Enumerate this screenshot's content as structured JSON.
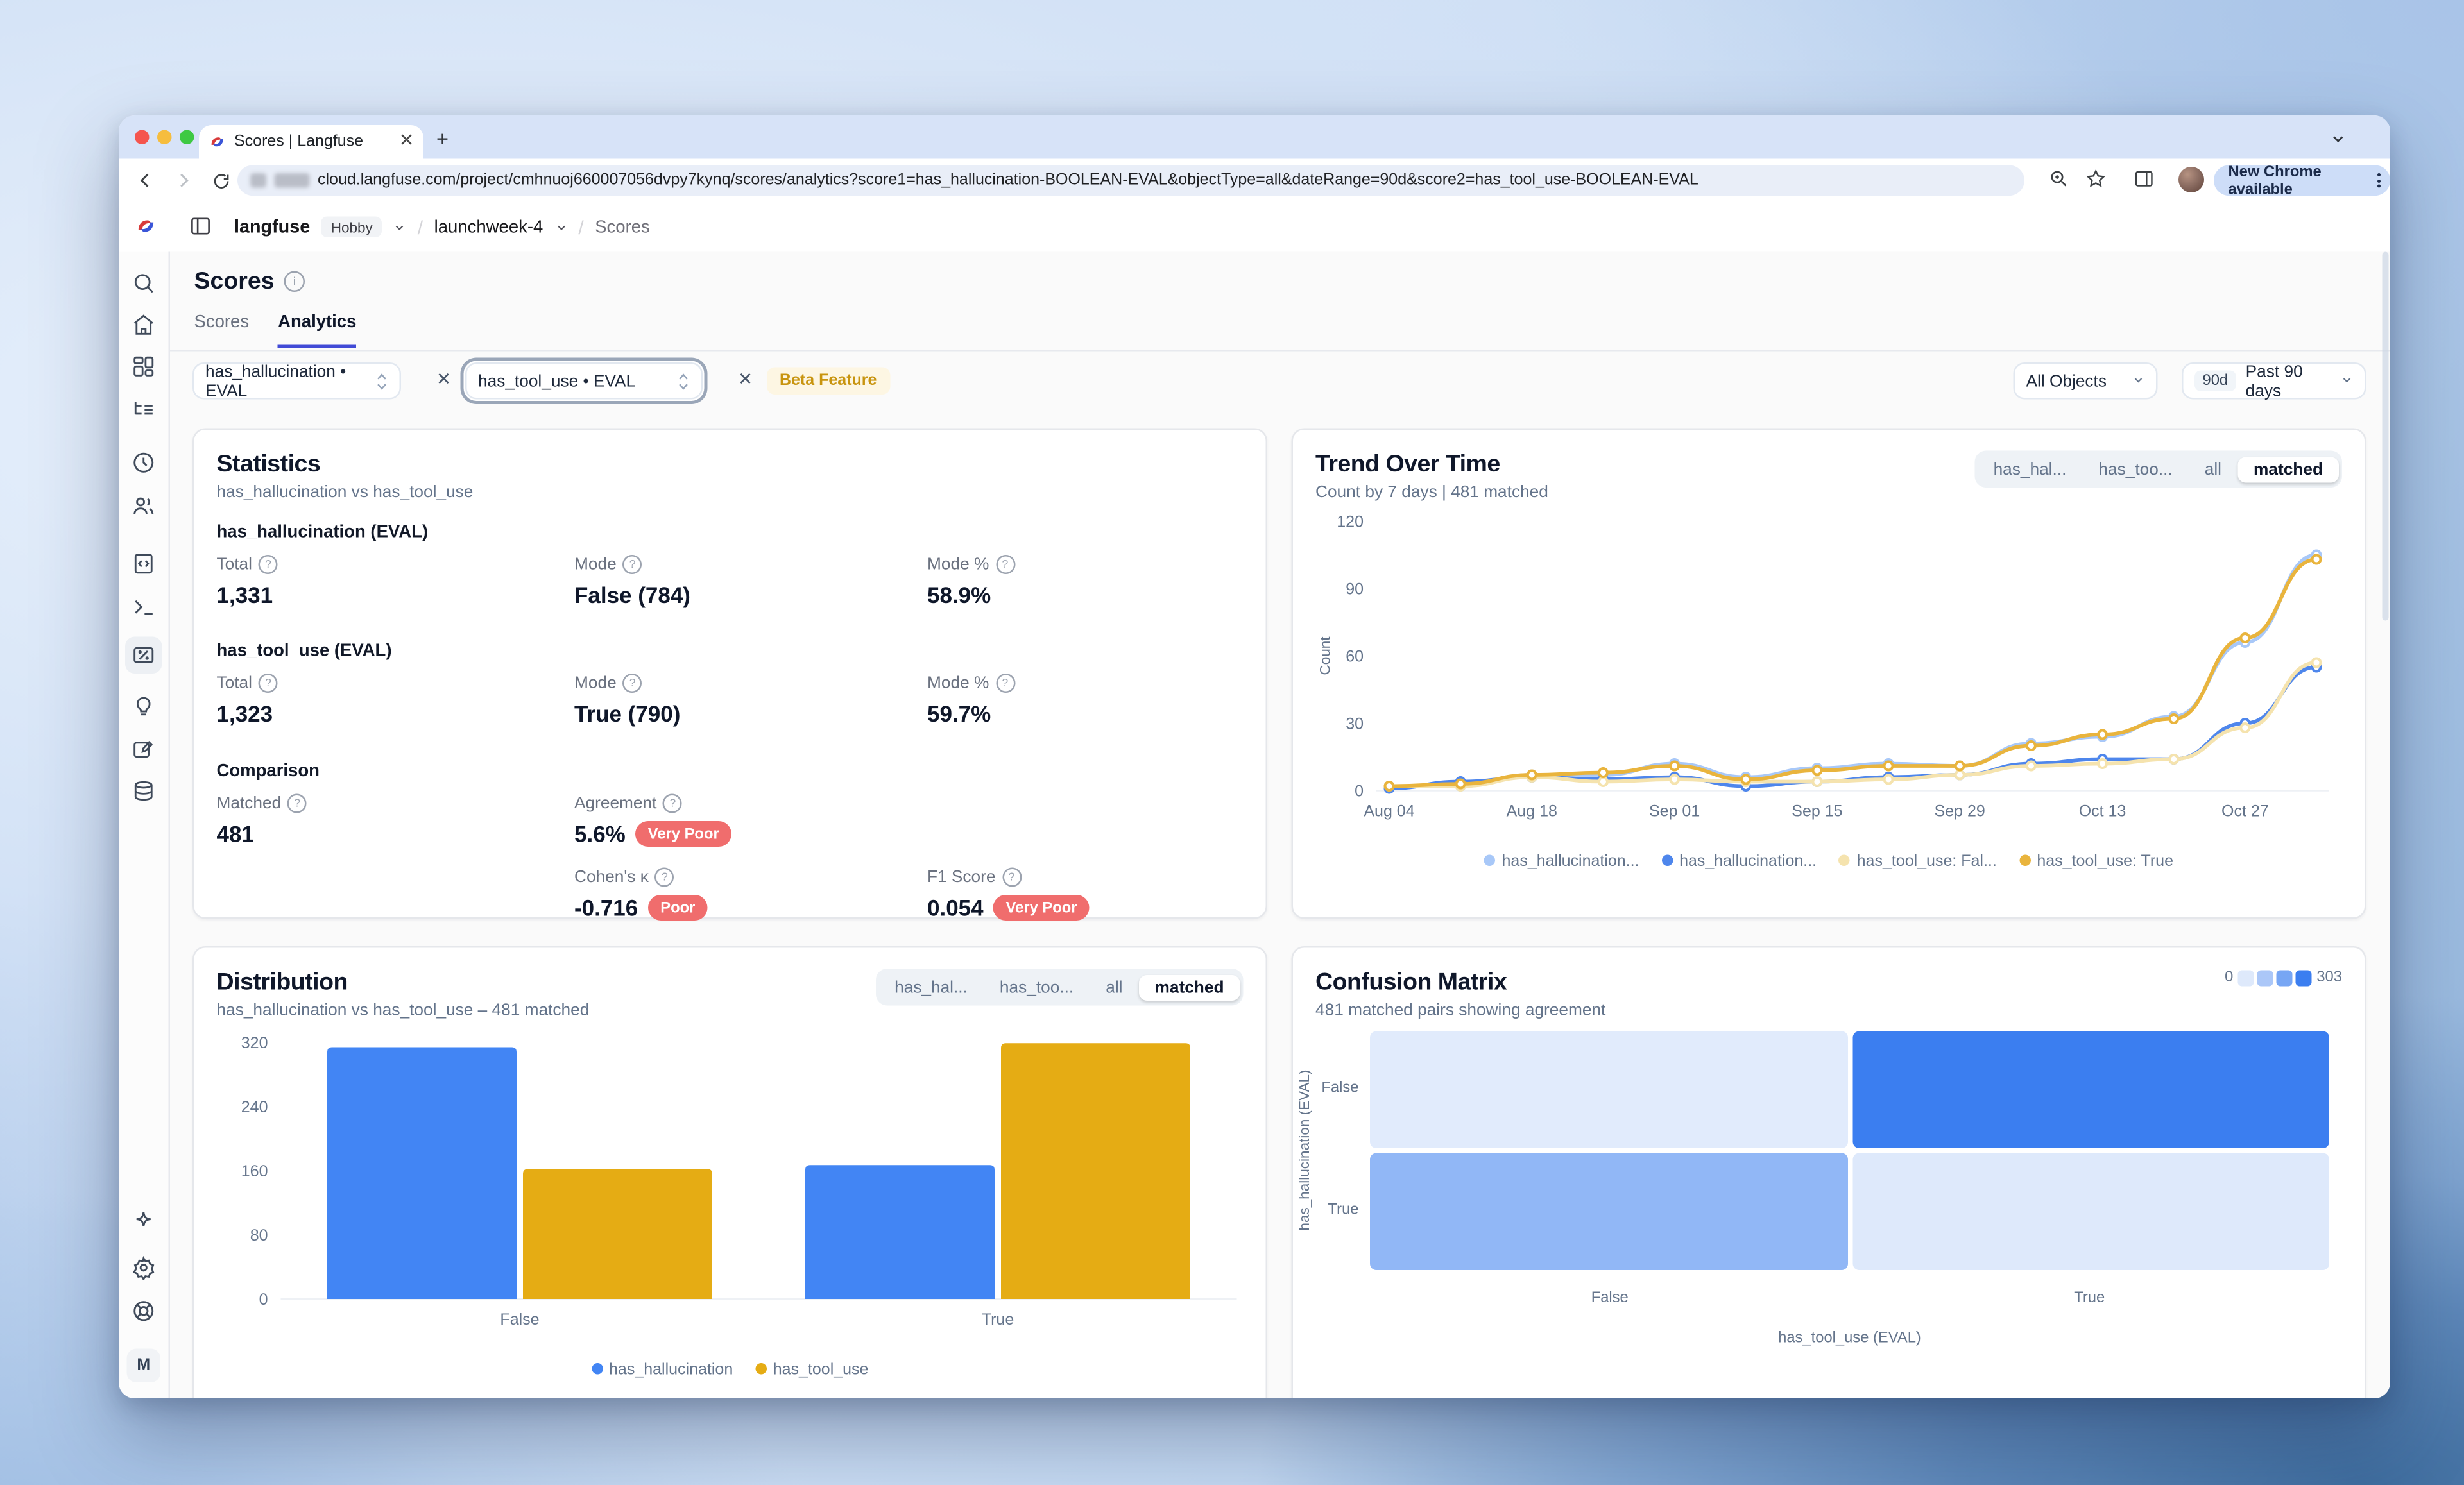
{
  "colors": {
    "blue": "#4285F4",
    "light_blue": "#A8C8F8",
    "gold": "#E5AC14",
    "soft_gold": "#E9B43D",
    "cream": "#F5E3AE",
    "badge_red": "#F06D6D",
    "active_tab_underline": "#414BD6",
    "heat_min": "#E7EFFC",
    "heat_max": "#3B7EF0"
  },
  "browser": {
    "tab_title": "Scores | Langfuse",
    "url": "cloud.langfuse.com/project/cmhnuoj660007056dvpy7kynq/scores/analytics?score1=has_hallucination-BOOLEAN-EVAL&objectType=all&dateRange=90d&score2=has_tool_use-BOOLEAN-EVAL",
    "update_button": "New Chrome available"
  },
  "header": {
    "brand": "langfuse",
    "plan_badge": "Hobby",
    "project": "launchweek-4",
    "section": "Scores"
  },
  "sidebar": {
    "icons": [
      "search",
      "home",
      "dashboards",
      "tracing",
      "sessions",
      "users",
      "prompts",
      "playground",
      "scores",
      "evaluation",
      "annotation",
      "datasets"
    ],
    "bottom_icons": [
      "whats-new",
      "settings",
      "support"
    ],
    "avatar_initial": "M"
  },
  "page": {
    "title": "Scores",
    "tabs": {
      "scores": "Scores",
      "analytics": "Analytics"
    }
  },
  "filters": {
    "score1": "has_hallucination • EVAL",
    "score2": "has_tool_use • EVAL",
    "beta_badge": "Beta Feature",
    "objects": "All Objects",
    "range_badge": "90d",
    "range_label": "Past 90 days"
  },
  "statistics": {
    "title": "Statistics",
    "subtitle": "has_hallucination vs has_tool_use",
    "section1": {
      "name": "has_hallucination (EVAL)",
      "total_label": "Total",
      "total": "1,331",
      "mode_label": "Mode",
      "mode": "False (784)",
      "mode_pct_label": "Mode %",
      "mode_pct": "58.9%"
    },
    "section2": {
      "name": "has_tool_use (EVAL)",
      "total_label": "Total",
      "total": "1,323",
      "mode_label": "Mode",
      "mode": "True (790)",
      "mode_pct_label": "Mode %",
      "mode_pct": "59.7%"
    },
    "comparison": {
      "name": "Comparison",
      "matched_label": "Matched",
      "matched": "481",
      "agreement_label": "Agreement",
      "agreement": "5.6%",
      "agreement_badge": "Very Poor",
      "kappa_label": "Cohen's κ",
      "kappa": "-0.716",
      "kappa_badge": "Poor",
      "f1_label": "F1 Score",
      "f1": "0.054",
      "f1_badge": "Very Poor"
    }
  },
  "trend": {
    "title": "Trend Over Time",
    "subtitle": "Count by 7 days | 481 matched",
    "tabs": [
      "has_hal...",
      "has_too...",
      "all",
      "matched"
    ],
    "active_tab": "matched"
  },
  "distribution": {
    "title": "Distribution",
    "subtitle": "has_hallucination vs has_tool_use – 481 matched",
    "tabs": [
      "has_hal...",
      "has_too...",
      "all",
      "matched"
    ],
    "active_tab": "matched"
  },
  "confusion": {
    "title": "Confusion Matrix",
    "subtitle": "481 matched pairs showing agreement",
    "scale_min": "0",
    "scale_max": "303",
    "row_labels": [
      "False",
      "True"
    ],
    "col_labels": [
      "False",
      "True"
    ],
    "x_title": "has_tool_use (EVAL)",
    "y_title": "has_hallucination (EVAL)"
  },
  "chart_data": [
    {
      "id": "trend",
      "type": "line",
      "title": "Trend Over Time",
      "ylabel": "Count",
      "ylim": [
        0,
        120
      ],
      "yticks": [
        0,
        30,
        60,
        90,
        120
      ],
      "x": [
        "Aug 04",
        "Aug 11",
        "Aug 18",
        "Aug 25",
        "Sep 01",
        "Sep 08",
        "Sep 15",
        "Sep 22",
        "Sep 29",
        "Oct 06",
        "Oct 13",
        "Oct 20",
        "Oct 27",
        "Nov 03"
      ],
      "xticks_shown": [
        "Aug 04",
        "Aug 18",
        "Sep 01",
        "Sep 15",
        "Sep 29",
        "Oct 13",
        "Oct 27"
      ],
      "xticks_index": [
        0,
        2,
        4,
        6,
        8,
        10,
        12
      ],
      "grid": false,
      "legend_position": "bottom",
      "series": [
        {
          "name": "has_hallucination...",
          "color": "#A8C8F8",
          "values": [
            2,
            2,
            7,
            7,
            12,
            6,
            10,
            12,
            11,
            21,
            24,
            33,
            66,
            105
          ]
        },
        {
          "name": "has_hallucination...",
          "color": "#4E86EC",
          "values": [
            1,
            4,
            6,
            5,
            6,
            2,
            4,
            6,
            7,
            12,
            14,
            14,
            30,
            55
          ]
        },
        {
          "name": "has_tool_use: Fal...",
          "color": "#F5E3AE",
          "values": [
            2,
            2,
            6,
            4,
            5,
            4,
            4,
            5,
            7,
            11,
            12,
            14,
            28,
            57
          ]
        },
        {
          "name": "has_tool_use: True",
          "color": "#E9B43D",
          "values": [
            2,
            3,
            7,
            8,
            11,
            5,
            9,
            11,
            11,
            20,
            25,
            32,
            68,
            103
          ]
        }
      ]
    },
    {
      "id": "distribution",
      "type": "bar",
      "title": "Distribution",
      "categories": [
        "False",
        "True"
      ],
      "ylim": [
        0,
        320
      ],
      "yticks": [
        0,
        80,
        160,
        240,
        320
      ],
      "grid": false,
      "legend_position": "bottom",
      "series": [
        {
          "name": "has_hallucination",
          "color": "#4285F4",
          "values": [
            314,
            167
          ]
        },
        {
          "name": "has_tool_use",
          "color": "#E5AC14",
          "values": [
            162,
            319
          ]
        }
      ]
    },
    {
      "id": "confusion",
      "type": "heatmap",
      "title": "Confusion Matrix",
      "rows": [
        "False",
        "True"
      ],
      "cols": [
        "False",
        "True"
      ],
      "values_estimated_from_shading": [
        [
          11,
          303
        ],
        [
          151,
          16
        ]
      ],
      "value_range": [
        0,
        303
      ],
      "color_min": "#E7EFFC",
      "color_max": "#3B7EF0",
      "x_title": "has_tool_use (EVAL)",
      "y_title": "has_hallucination (EVAL)"
    }
  ]
}
